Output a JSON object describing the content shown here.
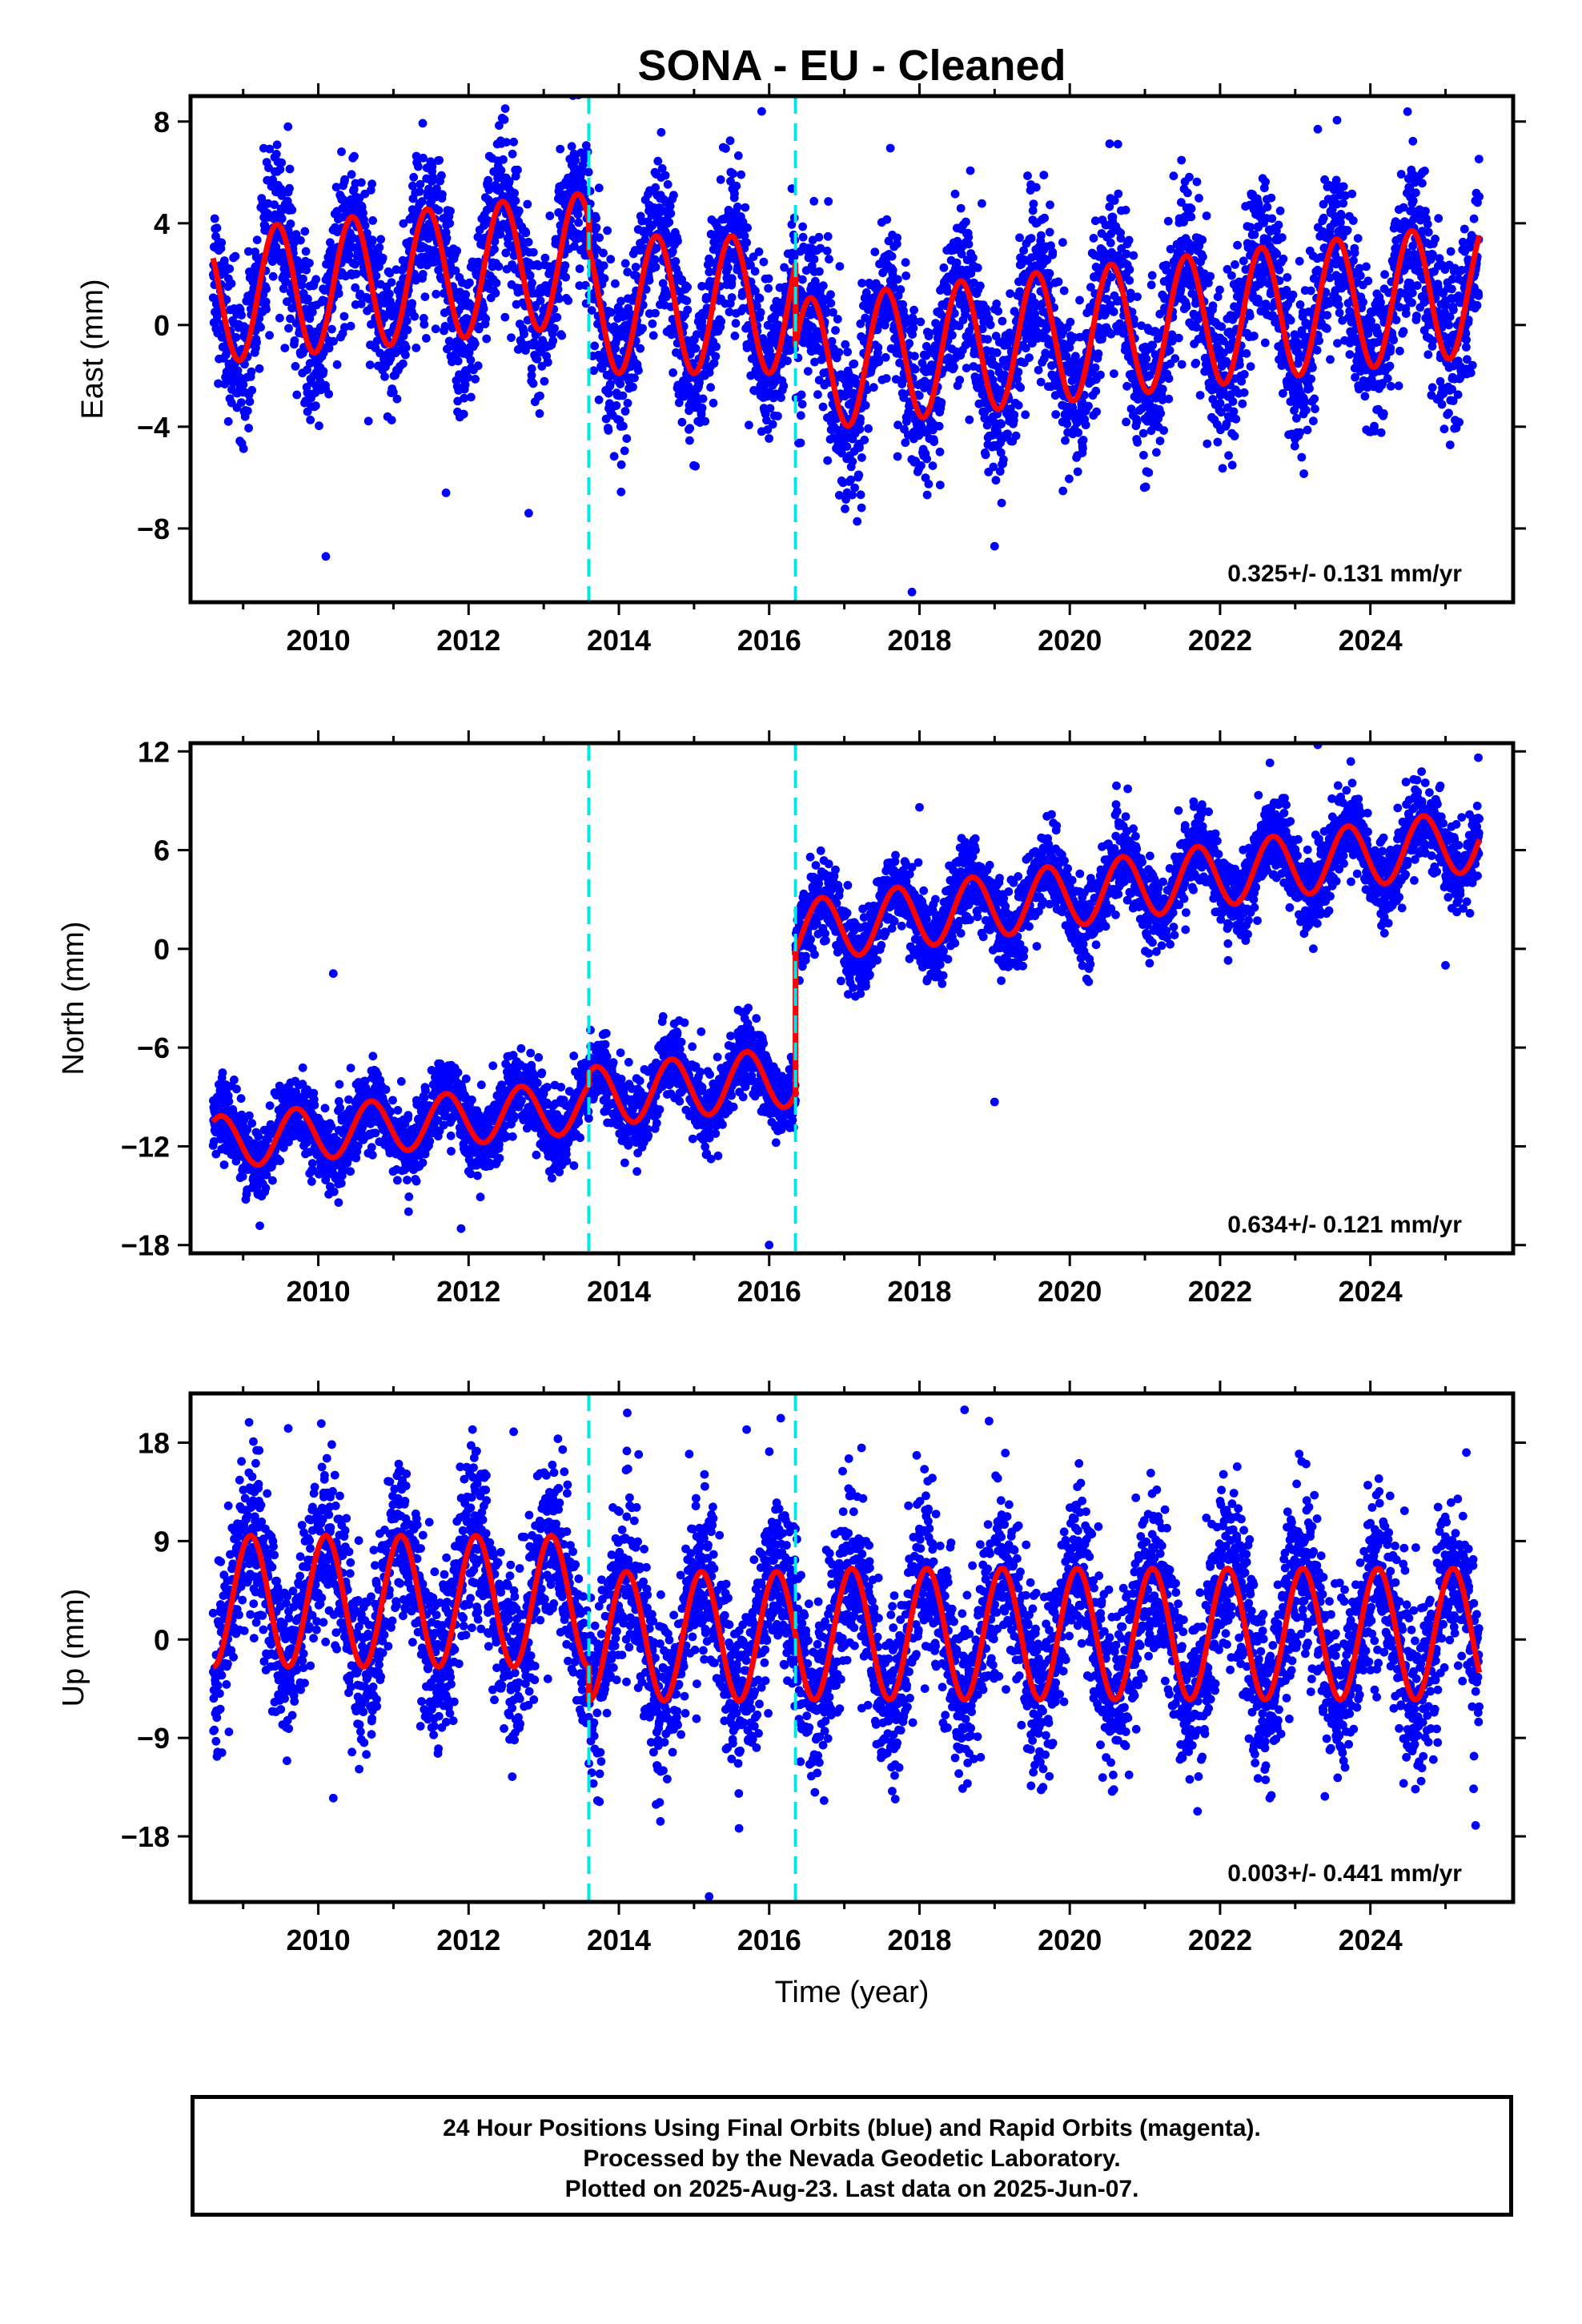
{
  "title": "SONA  - EU - Cleaned",
  "xlabel": "Time (year)",
  "footer": [
    "24 Hour Positions Using Final Orbits (blue) and Rapid Orbits (magenta).",
    "Processed by the Nevada Geodetic Laboratory.",
    "Plotted on 2025-Aug-23. Last data on 2025-Jun-07."
  ],
  "colors": {
    "points": "#0000ff",
    "model": "#ff0000",
    "offset_lines": "#00e5e5",
    "frame": "#000000"
  },
  "chart_data": [
    {
      "type": "scatter",
      "ylabel": "East (mm)",
      "xlim": [
        2008.3,
        2025.9
      ],
      "ylim": [
        -10.9,
        9.0
      ],
      "xticks": [
        2010,
        2012,
        2014,
        2016,
        2018,
        2020,
        2022,
        2024
      ],
      "yticks": [
        -8,
        -4,
        0,
        4,
        8
      ],
      "offsets": [
        2013.6,
        2016.35
      ],
      "rate_text": "0.325+/- 0.131 mm/yr",
      "model_segments": [
        {
          "t0": 2008.6,
          "t1": 2013.6,
          "mean": 1.1,
          "amp": 2.6,
          "noise": 1.5,
          "phase": 0.2,
          "trend": 0.3
        },
        {
          "t0": 2013.6,
          "t1": 2016.35,
          "mean": 0.8,
          "amp": 2.7,
          "noise": 1.5,
          "phase": 0.25,
          "trend": 0.0
        },
        {
          "t0": 2016.35,
          "t1": 2025.45,
          "mean": -1.6,
          "amp": 2.6,
          "noise": 1.6,
          "phase": 0.3,
          "trend": 0.33
        }
      ],
      "outliers": [
        [
          2010.1,
          -9.1
        ],
        [
          2017.9,
          -10.5
        ],
        [
          2011.7,
          -6.6
        ],
        [
          2015.9,
          8.4
        ],
        [
          2023.3,
          7.7
        ],
        [
          2012.8,
          -7.4
        ],
        [
          2019.0,
          -8.7
        ]
      ]
    },
    {
      "type": "scatter",
      "ylabel": "North (mm)",
      "xlim": [
        2008.3,
        2025.9
      ],
      "ylim": [
        -18.5,
        12.5
      ],
      "xticks": [
        2010,
        2012,
        2014,
        2016,
        2018,
        2020,
        2022,
        2024
      ],
      "yticks": [
        -18,
        -12,
        -6,
        0,
        6,
        12
      ],
      "offsets": [
        2013.6,
        2016.35
      ],
      "rate_text": "0.634+/- 0.121 mm/yr",
      "model_segments": [
        {
          "t0": 2008.6,
          "t1": 2013.6,
          "mean": -11.8,
          "amp": 1.6,
          "noise": 1.1,
          "phase": 0.45,
          "trend": 0.45
        },
        {
          "t0": 2013.6,
          "t1": 2016.35,
          "mean": -9.0,
          "amp": 1.8,
          "noise": 1.1,
          "phase": 0.45,
          "trend": 0.45
        },
        {
          "t0": 2016.35,
          "t1": 2025.45,
          "mean": 1.0,
          "amp": 1.9,
          "noise": 1.2,
          "phase": 0.45,
          "trend": 0.62
        }
      ],
      "outliers": [
        [
          2010.2,
          -1.5
        ],
        [
          2019.0,
          -9.3
        ],
        [
          2016.0,
          -18.0
        ],
        [
          2011.9,
          -17.0
        ],
        [
          2023.3,
          12.4
        ],
        [
          2018.0,
          8.6
        ],
        [
          2025.0,
          -1.0
        ]
      ]
    },
    {
      "type": "scatter",
      "ylabel": "Up (mm)",
      "xlim": [
        2008.3,
        2025.9
      ],
      "ylim": [
        -24.0,
        22.5
      ],
      "xticks": [
        2010,
        2012,
        2014,
        2016,
        2018,
        2020,
        2022,
        2024
      ],
      "yticks": [
        -18,
        -9,
        0,
        9,
        18
      ],
      "offsets": [
        2013.6,
        2016.35
      ],
      "rate_text": "0.003+/- 0.441 mm/yr",
      "model_segments": [
        {
          "t0": 2008.6,
          "t1": 2013.6,
          "mean": 3.5,
          "amp": 6.0,
          "noise": 3.8,
          "phase": 0.85,
          "trend": 0.0
        },
        {
          "t0": 2013.6,
          "t1": 2016.35,
          "mean": 0.3,
          "amp": 5.9,
          "noise": 3.8,
          "phase": 0.85,
          "trend": 0.0
        },
        {
          "t0": 2016.35,
          "t1": 2025.45,
          "mean": 0.5,
          "amp": 6.0,
          "noise": 3.9,
          "phase": 0.85,
          "trend": 0.0
        }
      ],
      "outliers": [
        [
          2015.2,
          -23.5
        ],
        [
          2018.6,
          21.0
        ],
        [
          2010.2,
          -14.5
        ],
        [
          2015.7,
          19.2
        ],
        [
          2025.4,
          -17.0
        ],
        [
          2009.6,
          19.3
        ],
        [
          2012.6,
          19.0
        ]
      ]
    }
  ]
}
